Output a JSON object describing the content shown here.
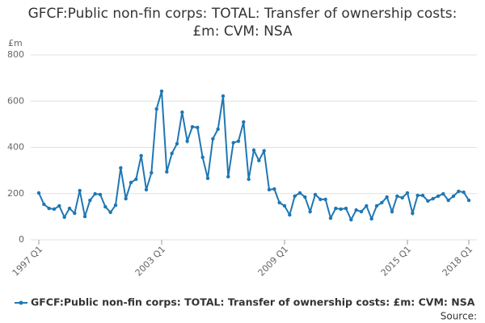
{
  "chart_data": {
    "type": "line",
    "title": "GFCF:Public non-fin corps: TOTAL: Transfer of ownership costs: £m: CVM: NSA",
    "y_unit": "£m",
    "source": "Source:",
    "categories": [
      "1997 Q1",
      null,
      null,
      null,
      null,
      null,
      null,
      null,
      null,
      null,
      null,
      null,
      null,
      null,
      null,
      null,
      null,
      null,
      null,
      null,
      null,
      null,
      null,
      null,
      "2003 Q1",
      null,
      null,
      null,
      null,
      null,
      null,
      null,
      null,
      null,
      null,
      null,
      null,
      null,
      null,
      null,
      null,
      null,
      null,
      null,
      null,
      null,
      null,
      null,
      "2009 Q1",
      null,
      null,
      null,
      null,
      null,
      null,
      null,
      null,
      null,
      null,
      null,
      null,
      null,
      null,
      null,
      null,
      null,
      null,
      null,
      null,
      null,
      null,
      null,
      "2015 Q1",
      null,
      null,
      null,
      null,
      null,
      null,
      null,
      null,
      null,
      null,
      null,
      "2018 Q1"
    ],
    "series": [
      {
        "name": "GFCF:Public non-fin corps: TOTAL: Transfer of ownership costs: £m: CVM: NSA",
        "color": "#1f77b4",
        "values": [
          203,
          154,
          136,
          133,
          147,
          98,
          136,
          115,
          213,
          101,
          171,
          199,
          196,
          143,
          119,
          150,
          311,
          178,
          248,
          262,
          364,
          217,
          290,
          566,
          643,
          294,
          374,
          416,
          552,
          427,
          489,
          486,
          357,
          266,
          437,
          479,
          622,
          273,
          420,
          427,
          510,
          262,
          388,
          343,
          385,
          217,
          220,
          161,
          147,
          108,
          189,
          203,
          185,
          122,
          196,
          175,
          175,
          94,
          136,
          133,
          136,
          87,
          129,
          122,
          147,
          91,
          147,
          161,
          185,
          122,
          189,
          182,
          203,
          115,
          192,
          192,
          168,
          178,
          189,
          199,
          171,
          189,
          210,
          206,
          171
        ]
      }
    ],
    "ylim": [
      0,
      800
    ],
    "yticks": [
      0,
      200,
      400,
      600,
      800
    ],
    "grid": true
  }
}
